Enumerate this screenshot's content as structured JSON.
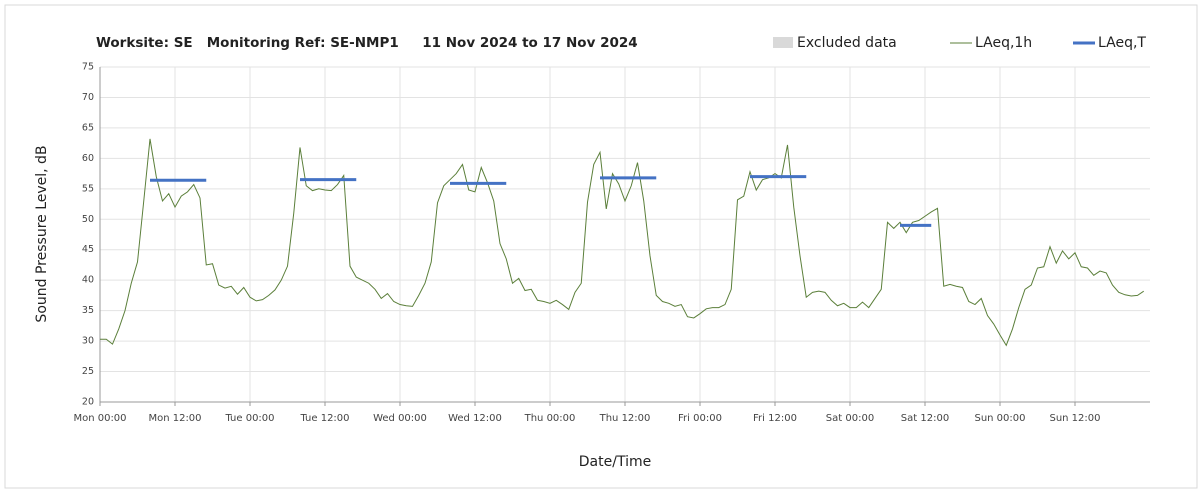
{
  "chart_data": {
    "type": "line",
    "title": "Worksite: SE   Monitoring Ref: SE-NMP1     11 Nov 2024 to 17 Nov 2024",
    "x_label": "Date/Time",
    "y_label": "Sound Pressure Level, dB",
    "excluded": {
      "name": "Excluded data",
      "color": "#d9d9d9"
    },
    "categories": [
      "Mon 00:00",
      null,
      null,
      null,
      null,
      null,
      null,
      null,
      null,
      null,
      null,
      null,
      "Mon 12:00",
      null,
      null,
      null,
      null,
      null,
      null,
      null,
      null,
      null,
      null,
      null,
      "Tue 00:00",
      null,
      null,
      null,
      null,
      null,
      null,
      null,
      null,
      null,
      null,
      null,
      "Tue 12:00",
      null,
      null,
      null,
      null,
      null,
      null,
      null,
      null,
      null,
      null,
      null,
      "Wed 00:00",
      null,
      null,
      null,
      null,
      null,
      null,
      null,
      null,
      null,
      null,
      null,
      "Wed 12:00",
      null,
      null,
      null,
      null,
      null,
      null,
      null,
      null,
      null,
      null,
      null,
      "Thu 00:00",
      null,
      null,
      null,
      null,
      null,
      null,
      null,
      null,
      null,
      null,
      null,
      "Thu 12:00",
      null,
      null,
      null,
      null,
      null,
      null,
      null,
      null,
      null,
      null,
      null,
      "Fri 00:00",
      null,
      null,
      null,
      null,
      null,
      null,
      null,
      null,
      null,
      null,
      null,
      "Fri 12:00",
      null,
      null,
      null,
      null,
      null,
      null,
      null,
      null,
      null,
      null,
      null,
      "Sat 00:00",
      null,
      null,
      null,
      null,
      null,
      null,
      null,
      null,
      null,
      null,
      null,
      "Sat 12:00",
      null,
      null,
      null,
      null,
      null,
      null,
      null,
      null,
      null,
      null,
      null,
      "Sun 00:00",
      null,
      null,
      null,
      null,
      null,
      null,
      null,
      null,
      null,
      null,
      null,
      "Sun 12:00",
      null,
      null,
      null,
      null,
      null,
      null,
      null,
      null,
      null,
      null,
      null
    ],
    "series": [
      {
        "name": "LAeq,1h",
        "color": "#5b7f3a",
        "width": 1,
        "values": [
          30.3,
          30.3,
          29.5,
          32,
          35,
          39.5,
          43,
          53,
          63.2,
          57,
          53,
          54.2,
          52,
          53.8,
          54.5,
          55.7,
          53.5,
          42.5,
          42.7,
          39.2,
          38.7,
          39,
          37.7,
          38.8,
          37.2,
          36.6,
          36.8,
          37.5,
          38.4,
          40,
          42.3,
          51,
          61.8,
          55.5,
          54.7,
          55,
          54.8,
          54.7,
          55.7,
          57.2,
          42.3,
          40.5,
          40,
          39.5,
          38.5,
          37,
          37.8,
          36.5,
          36,
          35.8,
          35.7,
          37.5,
          39.5,
          43,
          52.7,
          55.5,
          56.5,
          57.5,
          59,
          54.8,
          54.5,
          58.5,
          56,
          53,
          46,
          43.5,
          39.5,
          40.3,
          38.3,
          38.5,
          36.7,
          36.5,
          36.2,
          36.7,
          36,
          35.2,
          38,
          39.5,
          52.8,
          59,
          61,
          51.7,
          57.5,
          55.8,
          53,
          55.5,
          59.3,
          53,
          44,
          37.5,
          36.5,
          36.2,
          35.7,
          36,
          34,
          33.8,
          34.5,
          35.3,
          35.5,
          35.5,
          36,
          38.5,
          53.2,
          53.8,
          57.8,
          54.8,
          56.5,
          56.8,
          57.5,
          56.8,
          62.2,
          52,
          44,
          37.2,
          38,
          38.2,
          38,
          36.7,
          35.8,
          36.2,
          35.5,
          35.5,
          36.4,
          35.5,
          37,
          38.5,
          49.5,
          48.5,
          49.5,
          47.8,
          49.5,
          49.8,
          50.5,
          51.2,
          51.8,
          39,
          39.3,
          39,
          38.8,
          36.5,
          36,
          37,
          34.2,
          32.8,
          31,
          29.3,
          32,
          35.5,
          38.5,
          39.2,
          42,
          42.2,
          45.5,
          42.8,
          44.8,
          43.5,
          44.5,
          42.2,
          42,
          40.8,
          41.5,
          41.2,
          39.2,
          38,
          37.6,
          37.4,
          37.5,
          38.2
        ]
      },
      {
        "name": "LAeq,T",
        "color": "#4472c4",
        "width": 3,
        "values": [
          null,
          null,
          null,
          null,
          null,
          null,
          null,
          null,
          56.4,
          56.4,
          56.4,
          56.4,
          56.4,
          56.4,
          56.4,
          56.4,
          56.4,
          56.4,
          null,
          null,
          null,
          null,
          null,
          null,
          null,
          null,
          null,
          null,
          null,
          null,
          null,
          null,
          56.5,
          56.5,
          56.5,
          56.5,
          56.5,
          56.5,
          56.5,
          56.5,
          56.5,
          56.5,
          null,
          null,
          null,
          null,
          null,
          null,
          null,
          null,
          null,
          null,
          null,
          null,
          null,
          null,
          55.9,
          55.9,
          55.9,
          55.9,
          55.9,
          55.9,
          55.9,
          55.9,
          55.9,
          55.9,
          null,
          null,
          null,
          null,
          null,
          null,
          null,
          null,
          null,
          null,
          null,
          null,
          null,
          null,
          56.8,
          56.8,
          56.8,
          56.8,
          56.8,
          56.8,
          56.8,
          56.8,
          56.8,
          56.8,
          null,
          null,
          null,
          null,
          null,
          null,
          null,
          null,
          null,
          null,
          null,
          null,
          null,
          null,
          57,
          57,
          57,
          57,
          57,
          57,
          57,
          57,
          57,
          57,
          null,
          null,
          null,
          null,
          null,
          null,
          null,
          null,
          null,
          null,
          null,
          null,
          null,
          null,
          49,
          49,
          49,
          49,
          49,
          49,
          null,
          null,
          null,
          null,
          null,
          null,
          null,
          null,
          null,
          null,
          null,
          null,
          null,
          null,
          null,
          null,
          null,
          null,
          null,
          null,
          null,
          null,
          null,
          null,
          null,
          null,
          null,
          null,
          null,
          null,
          null,
          null,
          null,
          null
        ]
      }
    ],
    "ylim": [
      20,
      75
    ],
    "yticks": [
      20,
      25,
      30,
      35,
      40,
      45,
      50,
      55,
      60,
      65,
      70,
      75
    ],
    "grid": true
  }
}
